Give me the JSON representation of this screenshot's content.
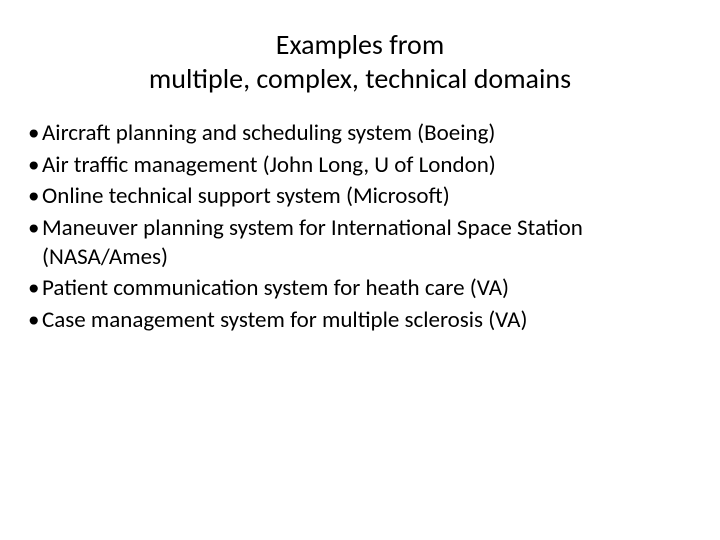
{
  "colors": {
    "background": "#ffffff",
    "text": "#000000"
  },
  "typography": {
    "title_fontsize": 28,
    "body_fontsize": 23,
    "font_family": "Calibri"
  },
  "title": {
    "line1": "Examples from",
    "line2": "multiple, complex, technical domains"
  },
  "bullets": [
    {
      "text": "Aircraft planning and scheduling system (Boeing)"
    },
    {
      "text": "Air traffic management (John Long, U of London)"
    },
    {
      "text": "Online technical support system (Microsoft)"
    },
    {
      "text": "Maneuver planning system for International Space Station (NASA/Ames)"
    },
    {
      "text": "Patient communication system for heath care (VA)"
    },
    {
      "text": "Case management system for multiple sclerosis (VA)"
    }
  ],
  "bullet_char": "•"
}
